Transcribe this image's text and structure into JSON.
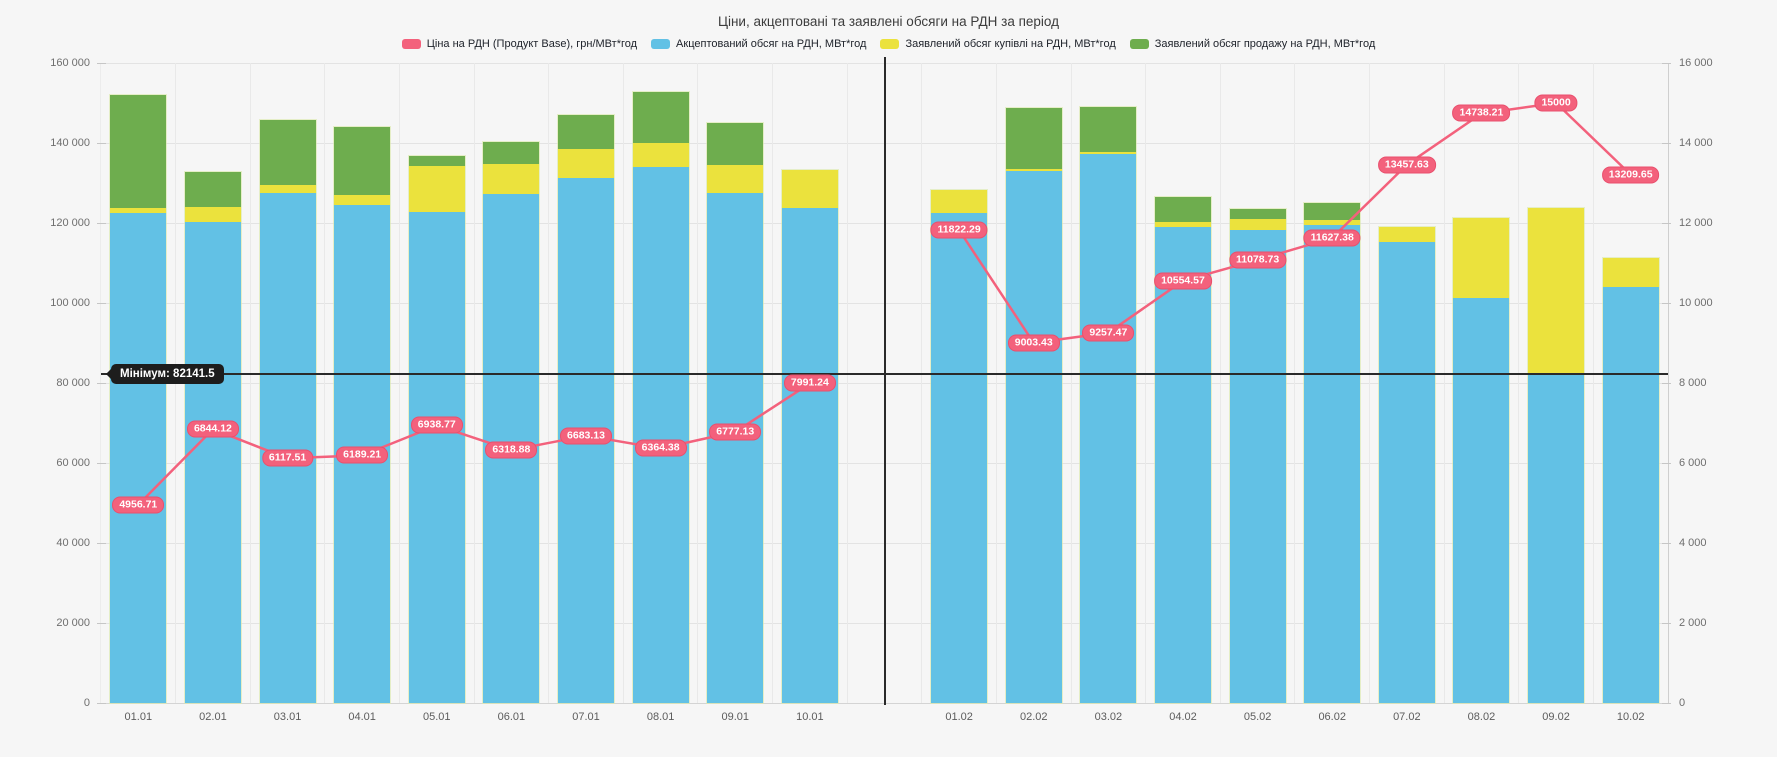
{
  "title": "Ціни, акцептовані та заявлені обсяги на РДН за період",
  "annotation": {
    "label": "Мінімум: 82141.5",
    "value": 82141.5
  },
  "colors": {
    "price_line": "#f3617c",
    "accepted_volume": "#62c1e5",
    "buy_volume": "#ebe23d",
    "sell_volume": "#6ead4e",
    "section_line": "#2a2a2a"
  },
  "legend": {
    "items": [
      {
        "label": "Ціна на РДН (Продукт Base), грн/МВт*год",
        "color": "#f3617c"
      },
      {
        "label": "Акцептований обсяг на РДН, МВт*год",
        "color": "#62c1e5"
      },
      {
        "label": "Заявлений обсяг купівлі на РДН, МВт*год",
        "color": "#ebe23d"
      },
      {
        "label": "Заявлений обсяг продажу на РДН, МВт*год",
        "color": "#6ead4e"
      }
    ]
  },
  "chart_data": {
    "type": "bar",
    "stacked": true,
    "categories": [
      "01.01",
      "02.01",
      "03.01",
      "04.01",
      "05.01",
      "06.01",
      "07.01",
      "08.01",
      "09.01",
      "10.01",
      "01.02",
      "02.02",
      "03.02",
      "04.02",
      "05.02",
      "06.02",
      "07.02",
      "08.02",
      "09.02",
      "10.02"
    ],
    "break_index": 10,
    "series": [
      {
        "name": "Акцептований обсяг на РДН, МВт*год",
        "type": "bar",
        "axis": "left",
        "color": "#62c1e5",
        "values": [
          122400,
          120300,
          127500,
          124500,
          122800,
          127300,
          131200,
          134000,
          127500,
          123800,
          122500,
          133000,
          137300,
          119000,
          118200,
          119500,
          115300,
          101300,
          82000,
          104000
        ]
      },
      {
        "name": "Заявлений обсяг купівлі на РДН, МВт*год",
        "type": "bar",
        "axis": "left",
        "color": "#ebe23d",
        "values": [
          1300,
          3700,
          2000,
          2500,
          11500,
          7500,
          7300,
          6000,
          7000,
          9400,
          5800,
          600,
          500,
          1300,
          2800,
          1300,
          3700,
          19900,
          41700,
          7200
        ]
      },
      {
        "name": "Заявлений обсяг продажу на РДН, МВт*год",
        "type": "bar",
        "axis": "left",
        "color": "#6ead4e",
        "values": [
          28300,
          8750,
          16250,
          17000,
          2400,
          5400,
          8500,
          12800,
          10500,
          0,
          0,
          15100,
          11200,
          6200,
          2500,
          4300,
          0,
          0,
          0,
          0
        ]
      },
      {
        "name": "Ціна на РДН (Продукт Base), грн/МВт*год",
        "type": "line",
        "axis": "right",
        "color": "#f3617c",
        "values": [
          4956.71,
          6844.12,
          6117.51,
          6189.21,
          6938.77,
          6318.88,
          6683.13,
          6364.38,
          6777.13,
          7991.24,
          11822.29,
          9003.43,
          9257.47,
          10554.57,
          11078.73,
          11627.38,
          13457.63,
          14738.21,
          15000,
          13209.65
        ],
        "labels": [
          "4956.71",
          "6844.12",
          "6117.51",
          "6189.21",
          "6938.77",
          "6318.88",
          "6683.13",
          "6364.38",
          "6777.13",
          "7991.24",
          "11822.29",
          "9003.43",
          "9257.47",
          "10554.57",
          "11078.73",
          "11627.38",
          "13457.63",
          "14738.21",
          "15000",
          "13209.65"
        ]
      }
    ],
    "left_axis": {
      "min": 0,
      "max": 160000,
      "tick_step": 20000,
      "tick_labels": [
        "0",
        "20 000",
        "40 000",
        "60 000",
        "80 000",
        "100 000",
        "120 000",
        "140 000",
        "160 000"
      ]
    },
    "right_axis": {
      "min": 0,
      "max": 16000,
      "tick_step": 2000,
      "tick_labels": [
        "0",
        "2 000",
        "4 000",
        "6 000",
        "8 000",
        "10 000",
        "12 000",
        "14 000",
        "16 000"
      ]
    },
    "min_line": {
      "value": 82141.5,
      "label": "Мінімум: 82141.5"
    },
    "legend_position": "top",
    "grid": true
  }
}
